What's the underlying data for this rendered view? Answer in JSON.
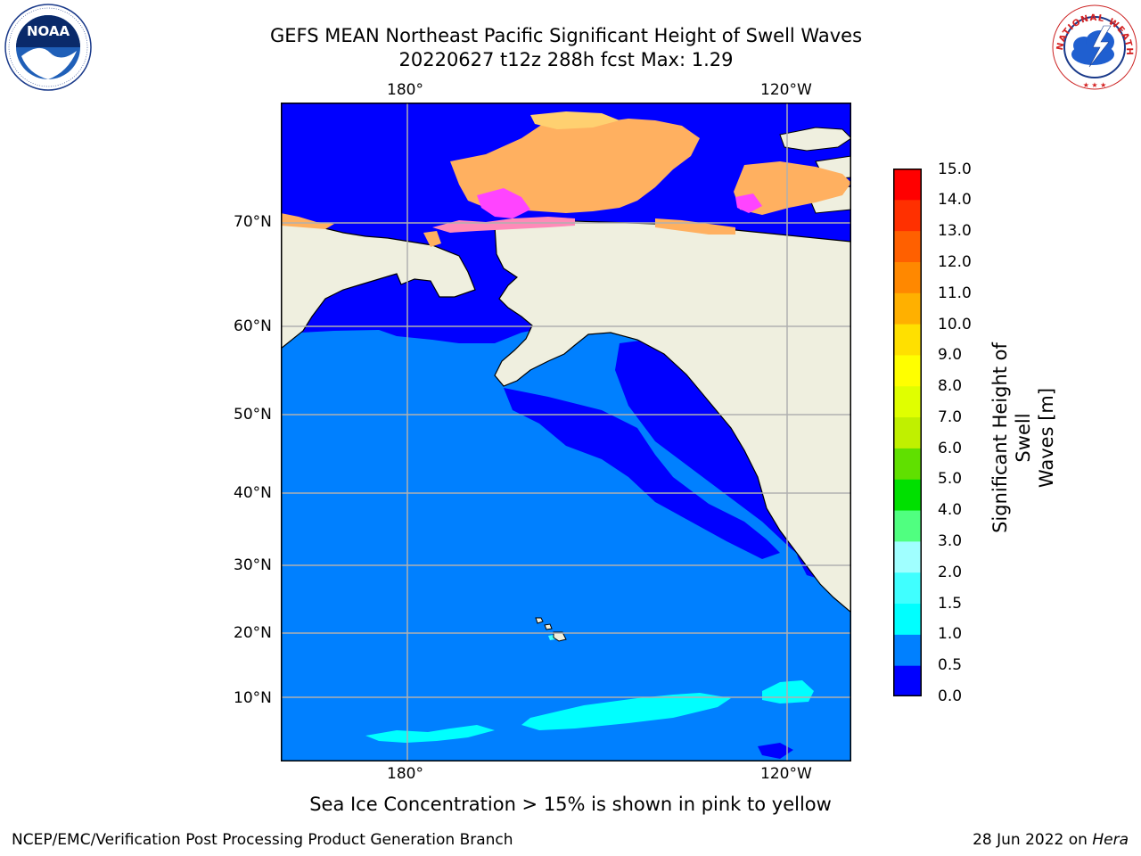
{
  "title": {
    "line1": "GEFS MEAN Northeast Pacific Significant Height of Swell Waves",
    "line2": "20220627 t12z 288h fcst   Max: 1.29"
  },
  "logos": {
    "noaa_text": "NOAA",
    "noaa_ring_text": "NATIONAL OCEANIC AND ATMOSPHERIC ADMINISTRATION · U.S. DEPARTMENT OF COMMERCE",
    "nws_ring_text": "NATIONAL WEATHER SERVICE"
  },
  "map": {
    "lon_labels_top": [
      "180°",
      "120°W"
    ],
    "lon_labels_bottom": [
      "180°",
      "120°W"
    ],
    "lat_labels": [
      "70°N",
      "60°N",
      "50°N",
      "40°N",
      "30°N",
      "20°N",
      "10°N"
    ],
    "land_color": "#efefdf",
    "grid_color": "#b0b0b0",
    "ice_colors": [
      "#ff44ff",
      "#ff8ab8",
      "#ffb060",
      "#ffd070"
    ]
  },
  "colorbar": {
    "label": "Significant Height of Swell Waves [m]",
    "label_line1": "Significant Height of Swell",
    "label_line2": "Waves [m]",
    "ticks": [
      "15.0",
      "14.0",
      "13.0",
      "12.0",
      "11.0",
      "10.0",
      "9.0",
      "8.0",
      "7.0",
      "6.0",
      "5.0",
      "4.0",
      "3.0",
      "2.0",
      "1.5",
      "1.0",
      "0.5",
      "0.0"
    ],
    "colors": [
      "#0000ff",
      "#0080ff",
      "#00ffff",
      "#40ffff",
      "#a0ffff",
      "#50ff80",
      "#00e000",
      "#60e000",
      "#c0f000",
      "#e0ff00",
      "#ffff00",
      "#ffe000",
      "#ffb000",
      "#ff8800",
      "#ff6000",
      "#ff3000",
      "#ff0000"
    ]
  },
  "caption": "Sea Ice Concentration > 15% is shown in pink to yellow",
  "footer": {
    "left": "NCEP/EMC/Verification Post Processing Product Generation Branch",
    "right_date": "28 Jun 2022 on",
    "right_host": "Hera"
  }
}
